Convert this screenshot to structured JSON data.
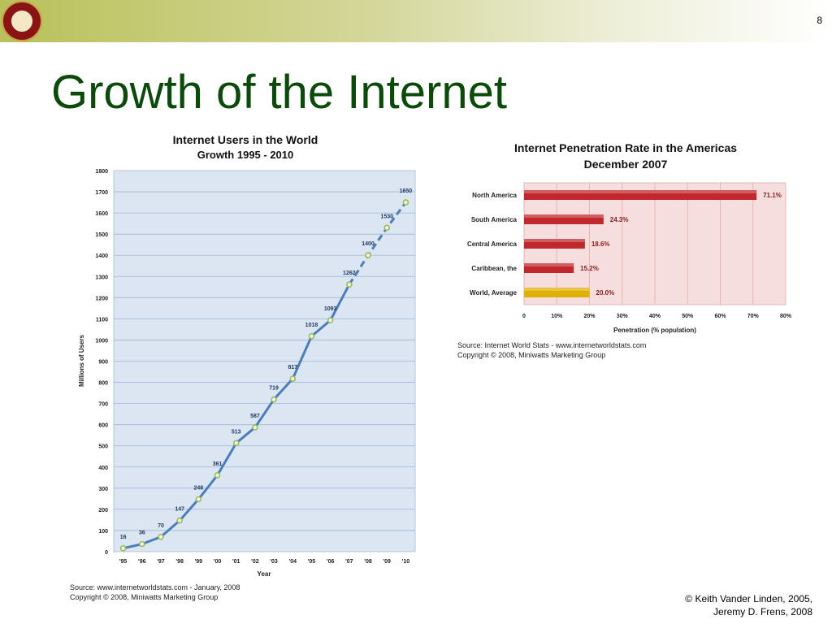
{
  "slide": {
    "number": "8",
    "title": "Growth of the Internet",
    "footer_line1": "© Keith Vander Linden, 2005,",
    "footer_line2": "Jeremy D. Frens, 2008"
  },
  "chart_data": [
    {
      "type": "line",
      "title": "Internet Users in the World",
      "subtitle": "Growth 1995 - 2010",
      "xlabel": "Year",
      "ylabel": "Millions of Users",
      "ylim": [
        0,
        1800
      ],
      "yticks": [
        0,
        100,
        200,
        300,
        400,
        500,
        600,
        700,
        800,
        900,
        1000,
        1100,
        1200,
        1300,
        1400,
        1500,
        1600,
        1700,
        1800
      ],
      "grid": true,
      "categories": [
        "'95",
        "'96",
        "'97",
        "'98",
        "'99",
        "'00",
        "'01",
        "'02",
        "'03",
        "'04",
        "'05",
        "'06",
        "'07",
        "'08",
        "'09",
        "'10"
      ],
      "values": [
        16,
        36,
        70,
        147,
        248,
        361,
        513,
        587,
        719,
        817,
        1018,
        1093,
        1262,
        1400,
        1530,
        1650
      ],
      "labels": [
        "16",
        "36",
        "70",
        "147",
        "248",
        "361",
        "513",
        "587",
        "719",
        "817",
        "1018",
        "1093",
        "1262",
        "1400",
        "1530",
        "1650"
      ],
      "projected_from_index": 12,
      "line_color": "#4a7ebb",
      "marker_color": "#9bbb59",
      "background_color": "#dce6f2",
      "source_line1": "Source: www.internetworldstats.com - January, 2008",
      "source_line2": "Copyright © 2008, Miniwatts Marketing Group"
    },
    {
      "type": "bar",
      "orientation": "horizontal",
      "title": "Internet Penetration Rate in the Americas",
      "subtitle": "December 2007",
      "xlabel": "Penetration (% population)",
      "xlim": [
        0,
        80
      ],
      "xticks": [
        "0",
        "10%",
        "20%",
        "30%",
        "40%",
        "50%",
        "60%",
        "70%",
        "80%"
      ],
      "grid": true,
      "categories": [
        "North America",
        "South America",
        "Central America",
        "Caribbean, the",
        "World, Average"
      ],
      "values": [
        71.1,
        24.3,
        18.6,
        15.2,
        20.0
      ],
      "labels": [
        "71.1%",
        "24.3%",
        "18.6%",
        "15.2%",
        "20.0%"
      ],
      "bar_colors": [
        "#c0282b",
        "#c0282b",
        "#c0282b",
        "#c0282b",
        "#e0b000"
      ],
      "background_color": "#f6dede",
      "source_line1": "Source: Internet World Stats - www.internetworldstats.com",
      "source_line2": "Copyright © 2008, Miniwatts Marketing Group"
    }
  ]
}
